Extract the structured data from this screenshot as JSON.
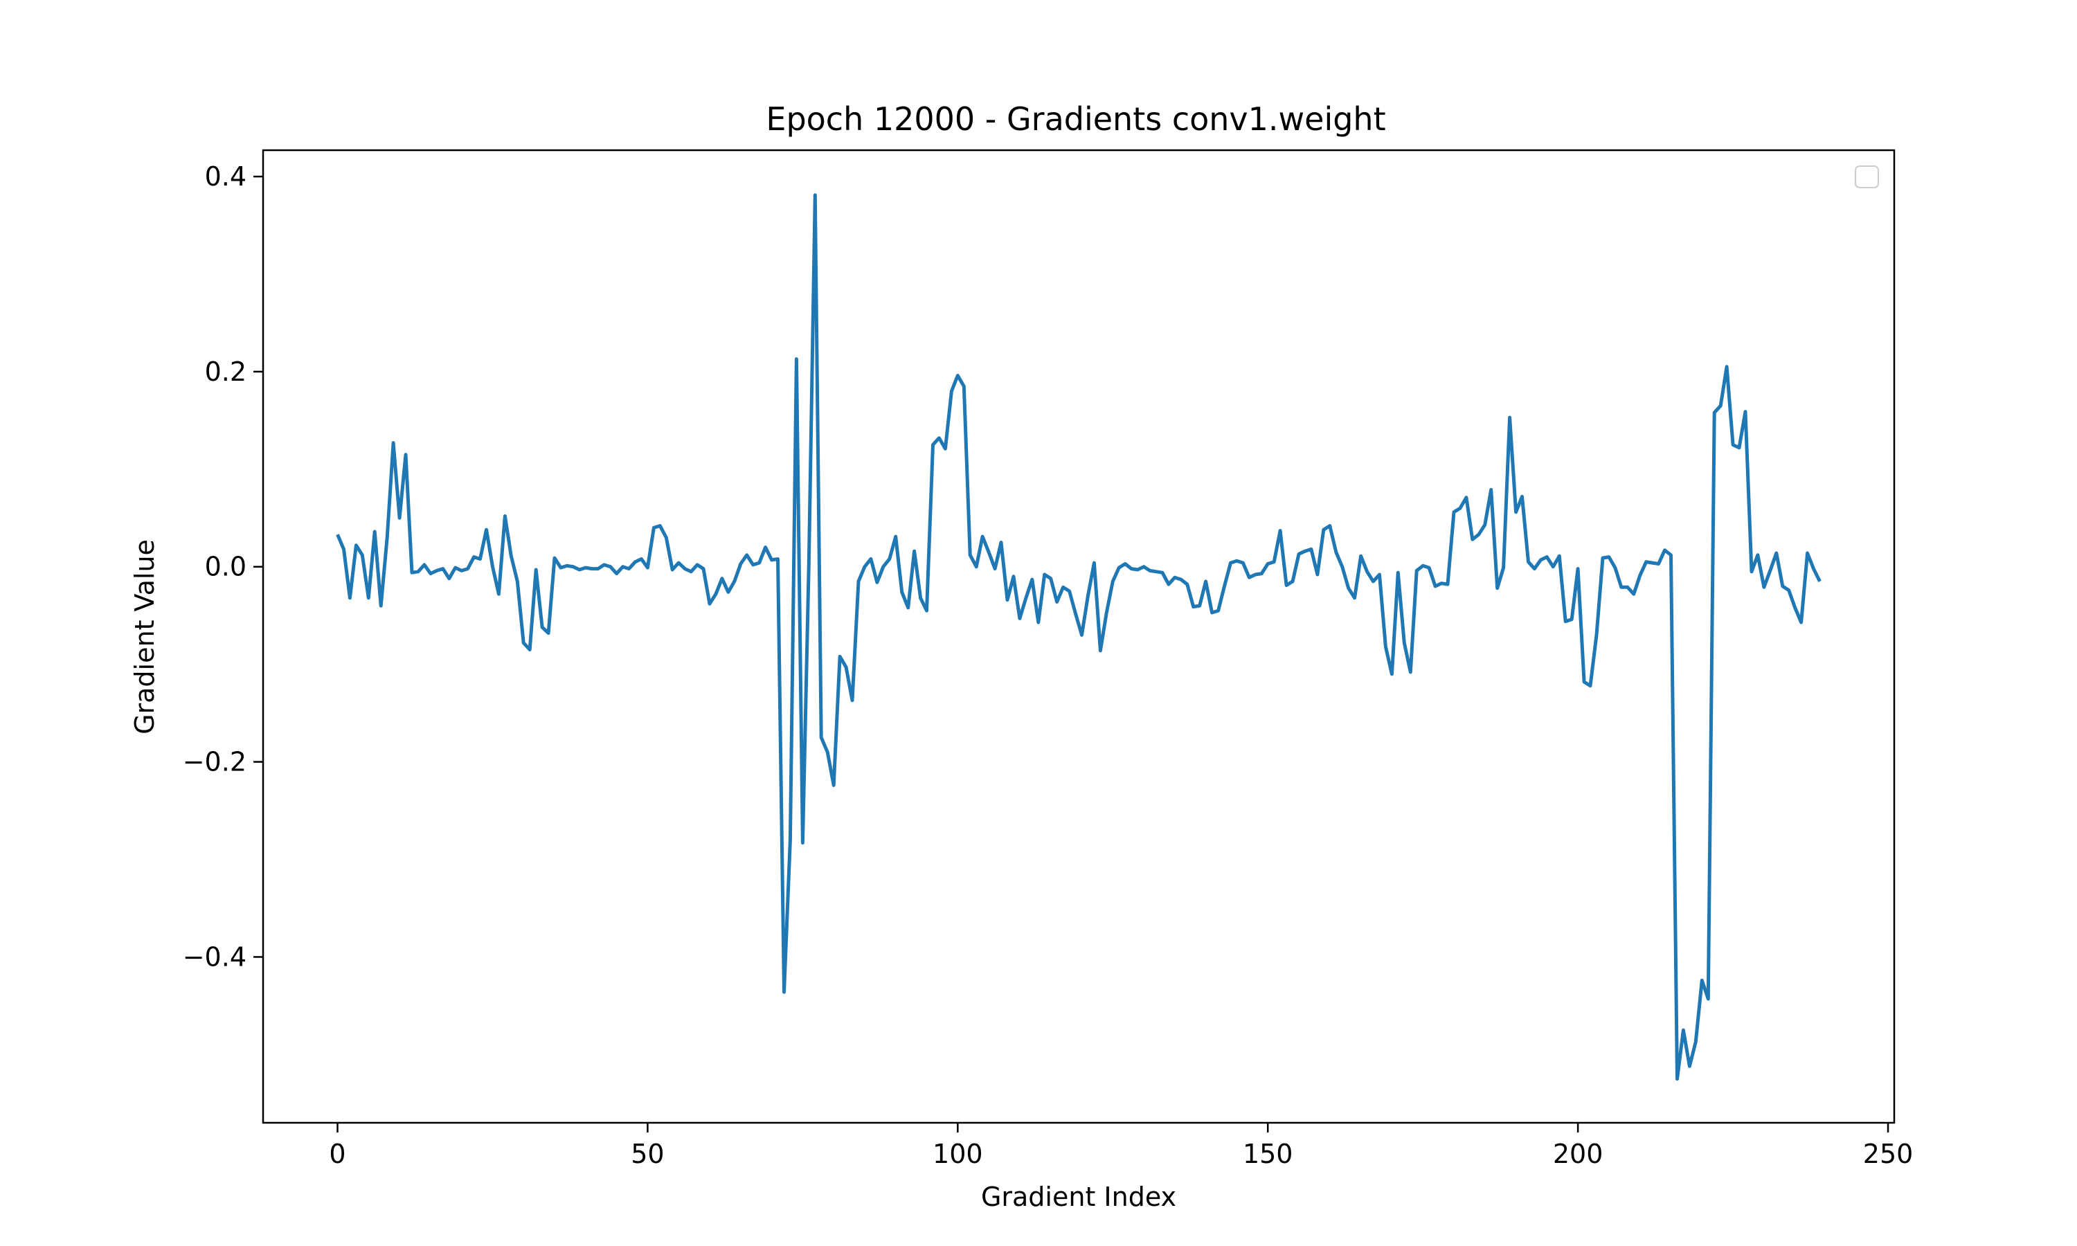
{
  "chart_data": {
    "type": "line",
    "title": "Epoch 12000 - Gradients conv1.weight",
    "xlabel": "Gradient Index",
    "ylabel": "Gradient Value",
    "xlim": [
      -12,
      251
    ],
    "ylim": [
      -0.57,
      0.427
    ],
    "xticks": [
      0,
      50,
      100,
      150,
      200,
      250
    ],
    "xtick_labels": [
      "0",
      "50",
      "100",
      "150",
      "200",
      "250"
    ],
    "yticks": [
      -0.4,
      -0.2,
      0.0,
      0.2,
      0.4
    ],
    "ytick_labels": [
      "−0.4",
      "−0.2",
      "0.0",
      "0.2",
      "0.4"
    ],
    "grid": false,
    "legend": "top-right (empty)",
    "line_color": "#1f77b4",
    "series": [
      {
        "x": [
          0,
          1,
          2,
          3,
          4,
          5,
          6,
          7,
          8,
          9,
          10,
          11,
          12,
          13,
          14,
          15,
          16,
          17,
          18,
          19,
          20,
          21,
          22,
          23,
          24,
          25,
          26,
          27,
          28,
          29,
          30,
          31,
          32,
          33,
          34,
          35,
          36,
          37,
          38,
          39,
          40,
          41,
          42,
          43,
          44,
          45,
          46,
          47,
          48,
          49,
          50,
          51,
          52,
          53,
          54,
          55,
          56,
          57,
          58,
          59,
          60,
          61,
          62,
          63,
          64,
          65,
          66,
          67,
          68,
          69,
          70,
          71,
          72,
          73,
          74,
          75,
          76,
          77,
          78,
          79,
          80,
          81,
          82,
          83,
          84,
          85,
          86,
          87,
          88,
          89,
          90,
          91,
          92,
          93,
          94,
          95,
          96,
          97,
          98,
          99,
          100,
          101,
          102,
          103,
          104,
          105,
          106,
          107,
          108,
          109,
          110,
          111,
          112,
          113,
          114,
          115,
          116,
          117,
          118,
          119,
          120,
          121,
          122,
          123,
          124,
          125,
          126,
          127,
          128,
          129,
          130,
          131,
          132,
          133,
          134,
          135,
          136,
          137,
          138,
          139,
          140,
          141,
          142,
          143,
          144,
          145,
          146,
          147,
          148,
          149,
          150,
          151,
          152,
          153,
          154,
          155,
          156,
          157,
          158,
          159,
          160,
          161,
          162,
          163,
          164,
          165,
          166,
          167,
          168,
          169,
          170,
          171,
          172,
          173,
          174,
          175,
          176,
          177,
          178,
          179,
          180,
          181,
          182,
          183,
          184,
          185,
          186,
          187,
          188,
          189,
          190,
          191,
          192,
          193,
          194,
          195,
          196,
          197,
          198,
          199,
          200,
          201,
          202,
          203,
          204,
          205,
          206,
          207,
          208,
          209,
          210,
          211,
          212,
          213,
          214,
          215,
          216,
          217,
          218,
          219,
          220,
          221,
          222,
          223,
          224,
          225,
          226,
          227,
          228,
          229,
          230,
          231,
          232,
          233,
          234,
          235,
          236,
          237,
          238,
          239
        ],
        "values": [
          0.033,
          0.018,
          -0.032,
          0.022,
          0.012,
          -0.032,
          0.036,
          -0.04,
          0.03,
          0.127,
          0.05,
          0.115,
          -0.006,
          -0.005,
          0.002,
          -0.007,
          -0.004,
          -0.002,
          -0.012,
          -0.001,
          -0.004,
          -0.002,
          0.01,
          0.008,
          0.038,
          0.0,
          -0.028,
          0.052,
          0.011,
          -0.015,
          -0.078,
          -0.085,
          -0.003,
          -0.062,
          -0.068,
          0.009,
          -0.001,
          0.001,
          0.0,
          -0.003,
          -0.001,
          -0.002,
          -0.002,
          0.002,
          0.0,
          -0.007,
          0.0,
          -0.002,
          0.005,
          0.008,
          -0.001,
          0.04,
          0.042,
          0.03,
          -0.003,
          0.004,
          -0.002,
          -0.005,
          0.002,
          -0.002,
          -0.038,
          -0.028,
          -0.012,
          -0.026,
          -0.015,
          0.003,
          0.012,
          0.002,
          0.004,
          0.02,
          0.007,
          0.008,
          -0.436,
          -0.28,
          0.213,
          -0.283,
          0.003,
          0.381,
          -0.175,
          -0.19,
          -0.224,
          -0.092,
          -0.103,
          -0.137,
          -0.015,
          0.0,
          0.008,
          -0.016,
          0.0,
          0.008,
          0.031,
          -0.026,
          -0.042,
          0.016,
          -0.032,
          -0.045,
          0.125,
          0.132,
          0.121,
          0.18,
          0.196,
          0.185,
          0.012,
          0.0,
          0.031,
          0.015,
          -0.002,
          0.025,
          -0.034,
          -0.01,
          -0.053,
          -0.032,
          -0.013,
          -0.057,
          -0.008,
          -0.012,
          -0.036,
          -0.021,
          -0.025,
          -0.048,
          -0.07,
          -0.03,
          0.004,
          -0.086,
          -0.047,
          -0.015,
          -0.001,
          0.003,
          -0.002,
          -0.003,
          0.0,
          -0.004,
          -0.005,
          -0.006,
          -0.018,
          -0.011,
          -0.013,
          -0.018,
          -0.041,
          -0.04,
          -0.015,
          -0.047,
          -0.045,
          -0.02,
          0.004,
          0.006,
          0.004,
          -0.011,
          -0.008,
          -0.007,
          0.003,
          0.005,
          0.037,
          -0.019,
          -0.015,
          0.013,
          0.016,
          0.018,
          -0.008,
          0.038,
          0.042,
          0.015,
          0.0,
          -0.022,
          -0.032,
          0.011,
          -0.005,
          -0.015,
          -0.008,
          -0.082,
          -0.11,
          -0.006,
          -0.078,
          -0.108,
          -0.004,
          0.001,
          -0.001,
          -0.02,
          -0.017,
          -0.018,
          0.056,
          0.06,
          0.071,
          0.028,
          0.033,
          0.043,
          0.079,
          -0.022,
          -0.001,
          0.153,
          0.056,
          0.072,
          0.005,
          -0.002,
          0.007,
          0.01,
          0.0,
          0.011,
          -0.056,
          -0.054,
          -0.002,
          -0.118,
          -0.122,
          -0.07,
          0.009,
          0.01,
          -0.001,
          -0.021,
          -0.021,
          -0.028,
          -0.009,
          0.005,
          0.004,
          0.003,
          0.017,
          0.012,
          -0.525,
          -0.475,
          -0.512,
          -0.487,
          -0.424,
          -0.443,
          0.158,
          0.165,
          0.205,
          0.125,
          0.122,
          0.159,
          -0.005,
          0.012,
          -0.021,
          -0.004,
          0.014,
          -0.02,
          -0.024,
          -0.042,
          -0.057,
          0.014,
          -0.002,
          -0.015
        ]
      }
    ]
  }
}
